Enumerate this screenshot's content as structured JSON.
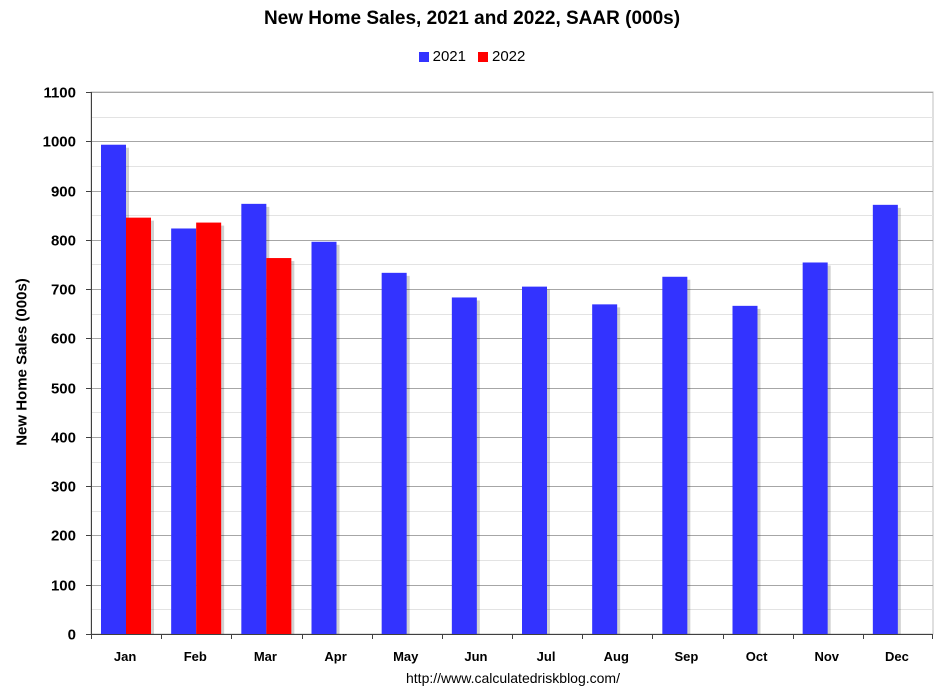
{
  "chart_data": {
    "type": "bar",
    "title": "New Home Sales,  2021 and 2022, SAAR (000s)",
    "ylabel": "New Home Sales (000s)",
    "xlabel": "",
    "source": "http://www.calculatedriskblog.com/",
    "categories": [
      "Jan",
      "Feb",
      "Mar",
      "Apr",
      "May",
      "Jun",
      "Jul",
      "Aug",
      "Sep",
      "Oct",
      "Nov",
      "Dec"
    ],
    "series": [
      {
        "name": "2021",
        "color": "#3333ff",
        "values": [
          993,
          823,
          873,
          796,
          733,
          683,
          705,
          669,
          725,
          666,
          754,
          871
        ]
      },
      {
        "name": "2022",
        "color": "#ff0000",
        "values": [
          845,
          835,
          763,
          null,
          null,
          null,
          null,
          null,
          null,
          null,
          null,
          null
        ]
      }
    ],
    "ylim": [
      0,
      1100
    ],
    "yticks": [
      0,
      100,
      200,
      300,
      400,
      500,
      600,
      700,
      800,
      900,
      1000,
      1100
    ],
    "grid": true,
    "legend_position": "top-center"
  }
}
